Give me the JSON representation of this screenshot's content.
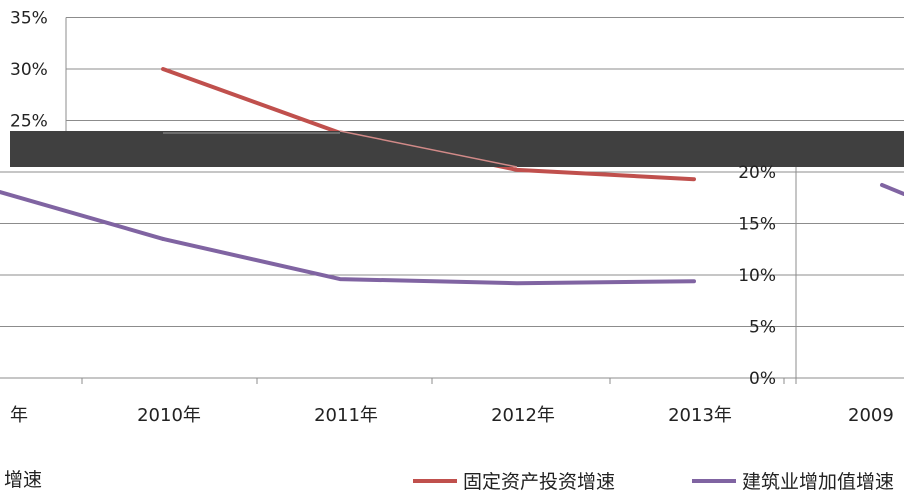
{
  "chart_data": {
    "type": "line",
    "categories": [
      "2010年",
      "2011年",
      "2012年",
      "2013年"
    ],
    "series": [
      {
        "name": "固定资产投资增速",
        "color": "#C0504D",
        "values": [
          30.0,
          23.8,
          20.2,
          19.3
        ]
      },
      {
        "name": "建筑业增加值增速",
        "color": "#8064A2",
        "values": [
          13.5,
          9.6,
          9.2,
          9.4
        ]
      }
    ],
    "y_ticks_upper": [
      "35%",
      "30%",
      "25%"
    ],
    "y_ticks_lower": [
      "20%",
      "15%",
      "10%",
      "5%",
      "0%"
    ],
    "ylim": [
      0,
      35
    ],
    "grid": true,
    "legend_position": "bottom",
    "partial_labels": {
      "left_x_tick": "年",
      "right_x_tick": "2009",
      "left_legend": "增速"
    },
    "occluder_color": "#404040"
  }
}
